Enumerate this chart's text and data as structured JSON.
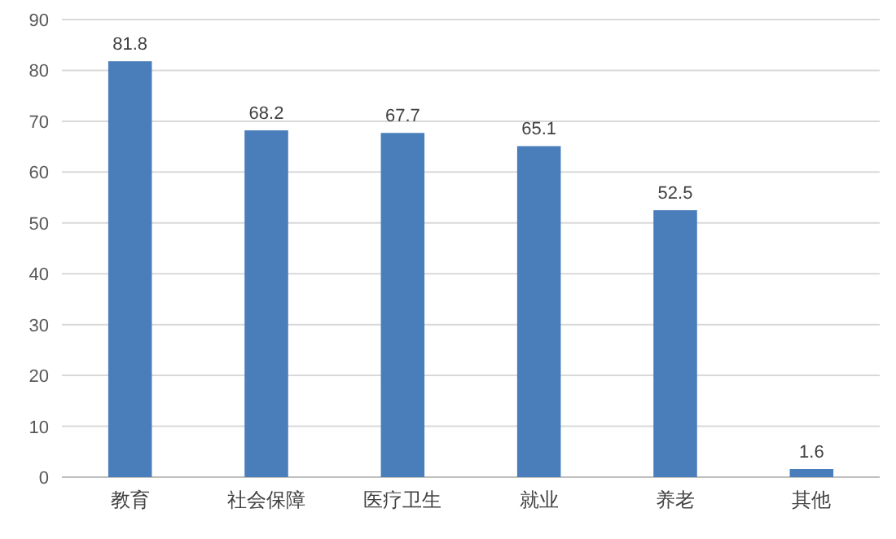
{
  "chart_data": {
    "type": "bar",
    "categories": [
      "教育",
      "社会保障",
      "医疗卫生",
      "就业",
      "养老",
      "其他"
    ],
    "values": [
      81.8,
      68.2,
      67.7,
      65.1,
      52.5,
      1.6
    ],
    "color": "#4a7ebb",
    "ylim": [
      0,
      90
    ],
    "yticks": [
      0,
      10,
      20,
      30,
      40,
      50,
      60,
      70,
      80,
      90
    ],
    "grid": "y",
    "data_labels": true
  }
}
